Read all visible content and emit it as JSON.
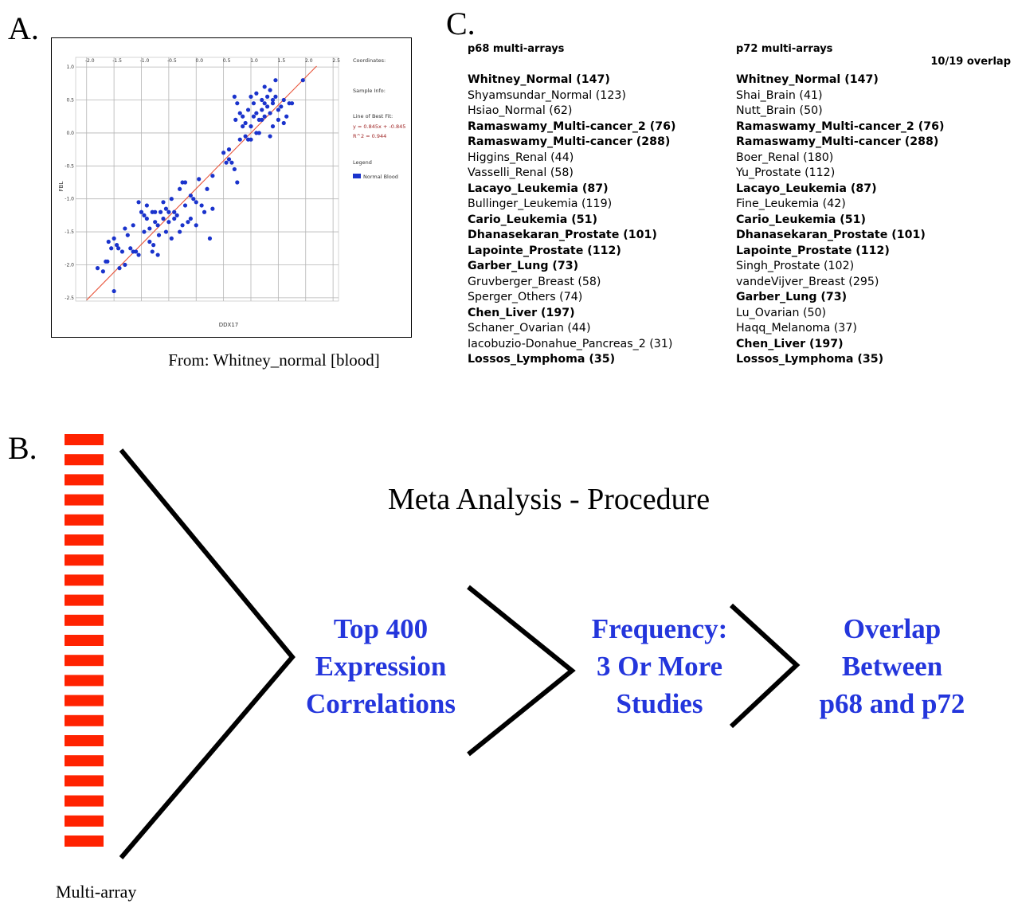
{
  "panel_letters": {
    "a": "A.",
    "b": "B.",
    "c": "C."
  },
  "panel_a": {
    "caption": "From: Whitney_normal [blood]",
    "side_panel": {
      "coordinates_label": "Coordinates:",
      "sample_info_label": "Sample Info:",
      "best_fit_label": "Line of Best Fit:",
      "equation": "y = 0.845x + -0.845",
      "r_squared": "R^2 = 0.944",
      "legend_label": "Legend",
      "legend_entry": "Normal Blood"
    },
    "colors": {
      "points": "#1a33cc",
      "fit_line": "#e8543a",
      "legend_swatch": "#1a33cc"
    },
    "chart_data": {
      "type": "scatter",
      "xlabel": "DDX17",
      "ylabel": "FBL",
      "xlim": [
        -2.2,
        2.6
      ],
      "ylim": [
        -2.55,
        1.05
      ],
      "x_ticks": [
        "-2.0",
        "-1.5",
        "-1.0",
        "-0.5",
        "0.0",
        "0.5",
        "1.0",
        "1.5",
        "2.0",
        "2.5"
      ],
      "y_ticks": [
        "1.0",
        "0.5",
        "0.0",
        "-0.5",
        "-1.0",
        "-1.5",
        "-2.0",
        "-2.5"
      ],
      "grid": true,
      "fit_line": {
        "slope": 0.845,
        "intercept": -0.845
      },
      "series": [
        {
          "name": "Normal Blood",
          "points": [
            [
              -1.8,
              -2.05
            ],
            [
              -1.7,
              -2.1
            ],
            [
              -1.65,
              -1.95
            ],
            [
              -1.62,
              -1.95
            ],
            [
              -1.6,
              -1.65
            ],
            [
              -1.55,
              -1.75
            ],
            [
              -1.5,
              -2.4
            ],
            [
              -1.5,
              -1.6
            ],
            [
              -1.45,
              -1.7
            ],
            [
              -1.42,
              -1.75
            ],
            [
              -1.4,
              -2.05
            ],
            [
              -1.35,
              -1.8
            ],
            [
              -1.3,
              -1.45
            ],
            [
              -1.3,
              -2.0
            ],
            [
              -1.25,
              -1.55
            ],
            [
              -1.2,
              -1.75
            ],
            [
              -1.15,
              -1.8
            ],
            [
              -1.15,
              -1.4
            ],
            [
              -1.1,
              -1.8
            ],
            [
              -1.05,
              -1.85
            ],
            [
              -1.05,
              -1.05
            ],
            [
              -1.0,
              -1.2
            ],
            [
              -0.95,
              -1.25
            ],
            [
              -0.95,
              -1.5
            ],
            [
              -0.9,
              -1.1
            ],
            [
              -0.9,
              -1.3
            ],
            [
              -0.85,
              -1.45
            ],
            [
              -0.85,
              -1.65
            ],
            [
              -0.8,
              -1.2
            ],
            [
              -0.8,
              -1.8
            ],
            [
              -0.78,
              -1.7
            ],
            [
              -0.75,
              -1.2
            ],
            [
              -0.75,
              -1.35
            ],
            [
              -0.7,
              -1.4
            ],
            [
              -0.7,
              -1.85
            ],
            [
              -0.68,
              -1.55
            ],
            [
              -0.65,
              -1.2
            ],
            [
              -0.6,
              -1.3
            ],
            [
              -0.6,
              -1.05
            ],
            [
              -0.55,
              -1.15
            ],
            [
              -0.55,
              -1.5
            ],
            [
              -0.5,
              -1.2
            ],
            [
              -0.5,
              -1.35
            ],
            [
              -0.45,
              -1.6
            ],
            [
              -0.45,
              -1.0
            ],
            [
              -0.4,
              -1.2
            ],
            [
              -0.4,
              -1.3
            ],
            [
              -0.35,
              -1.25
            ],
            [
              -0.3,
              -0.85
            ],
            [
              -0.3,
              -1.5
            ],
            [
              -0.25,
              -0.75
            ],
            [
              -0.25,
              -1.4
            ],
            [
              -0.2,
              -0.75
            ],
            [
              -0.2,
              -1.1
            ],
            [
              -0.15,
              -1.35
            ],
            [
              -0.1,
              -0.95
            ],
            [
              -0.05,
              -1.0
            ],
            [
              0.0,
              -1.05
            ],
            [
              0.0,
              -1.4
            ],
            [
              -0.1,
              -1.3
            ],
            [
              0.05,
              -0.7
            ],
            [
              0.1,
              -1.1
            ],
            [
              0.15,
              -1.2
            ],
            [
              0.2,
              -0.85
            ],
            [
              0.25,
              -1.6
            ],
            [
              0.3,
              -1.15
            ],
            [
              0.3,
              -0.65
            ],
            [
              0.5,
              -0.3
            ],
            [
              0.6,
              -0.4
            ],
            [
              0.65,
              -0.45
            ],
            [
              0.7,
              -0.55
            ],
            [
              0.75,
              -0.75
            ],
            [
              0.7,
              0.55
            ],
            [
              0.75,
              0.45
            ],
            [
              0.72,
              0.2
            ],
            [
              0.8,
              0.3
            ],
            [
              0.85,
              0.1
            ],
            [
              0.9,
              0.15
            ],
            [
              0.9,
              -0.05
            ],
            [
              0.95,
              0.35
            ],
            [
              1.0,
              0.55
            ],
            [
              1.0,
              0.1
            ],
            [
              1.0,
              -0.1
            ],
            [
              1.05,
              0.25
            ],
            [
              1.05,
              0.45
            ],
            [
              1.1,
              0.3
            ],
            [
              1.1,
              0.6
            ],
            [
              1.15,
              0.2
            ],
            [
              1.15,
              0.0
            ],
            [
              1.2,
              0.35
            ],
            [
              1.2,
              0.5
            ],
            [
              1.25,
              0.25
            ],
            [
              1.25,
              0.7
            ],
            [
              1.3,
              0.55
            ],
            [
              1.3,
              0.4
            ],
            [
              1.35,
              0.3
            ],
            [
              1.35,
              -0.05
            ],
            [
              1.4,
              0.45
            ],
            [
              1.4,
              0.1
            ],
            [
              1.45,
              0.55
            ],
            [
              1.5,
              0.35
            ],
            [
              1.5,
              0.2
            ],
            [
              1.55,
              0.4
            ],
            [
              1.6,
              0.15
            ],
            [
              1.6,
              0.5
            ],
            [
              1.65,
              0.25
            ],
            [
              1.7,
              0.45
            ],
            [
              1.75,
              0.45
            ],
            [
              1.95,
              0.8
            ],
            [
              1.45,
              0.8
            ],
            [
              1.35,
              0.65
            ],
            [
              1.2,
              0.2
            ],
            [
              1.1,
              0.0
            ],
            [
              0.95,
              -0.1
            ],
            [
              0.8,
              -0.1
            ],
            [
              0.85,
              0.25
            ],
            [
              0.6,
              -0.25
            ],
            [
              0.55,
              -0.45
            ],
            [
              1.4,
              0.5
            ],
            [
              1.25,
              0.45
            ]
          ]
        }
      ]
    }
  },
  "panel_b": {
    "title": "Meta Analysis - Procedure",
    "steps": [
      {
        "lines": [
          "Top 400",
          "Expression",
          "Correlations"
        ]
      },
      {
        "lines": [
          "Frequency:",
          "3 Or More",
          "Studies"
        ]
      },
      {
        "lines": [
          "Overlap",
          "Between",
          "p68 and p72"
        ]
      }
    ],
    "multiarray_label": "Multi-array",
    "multiarray_bar_count": 21,
    "colors": {
      "bars": "#ff2200",
      "text": "#2436dc",
      "lines": "#000000"
    }
  },
  "panel_c": {
    "overlap_note": "10/19 overlap",
    "p68": {
      "header": "p68 multi-arrays",
      "items": [
        {
          "text": "Whitney_Normal (147)",
          "bold": true
        },
        {
          "text": "Shyamsundar_Normal (123)",
          "bold": false
        },
        {
          "text": "Hsiao_Normal (62)",
          "bold": false
        },
        {
          "text": "Ramaswamy_Multi-cancer_2 (76)",
          "bold": true
        },
        {
          "text": "Ramaswamy_Multi-cancer (288)",
          "bold": true
        },
        {
          "text": "Higgins_Renal (44)",
          "bold": false
        },
        {
          "text": "Vasselli_Renal (58)",
          "bold": false
        },
        {
          "text": "Lacayo_Leukemia (87)",
          "bold": true
        },
        {
          "text": "Bullinger_Leukemia (119)",
          "bold": false
        },
        {
          "text": "Cario_Leukemia (51)",
          "bold": true
        },
        {
          "text": "Dhanasekaran_Prostate (101)",
          "bold": true
        },
        {
          "text": "Lapointe_Prostate (112)",
          "bold": true
        },
        {
          "text": "Garber_Lung (73)",
          "bold": true
        },
        {
          "text": "Gruvberger_Breast (58)",
          "bold": false
        },
        {
          "text": "Sperger_Others (74)",
          "bold": false
        },
        {
          "text": "Chen_Liver (197)",
          "bold": true
        },
        {
          "text": "Schaner_Ovarian (44)",
          "bold": false
        },
        {
          "text": "Iacobuzio-Donahue_Pancreas_2 (31)",
          "bold": false
        },
        {
          "text": "Lossos_Lymphoma (35)",
          "bold": true
        }
      ]
    },
    "p72": {
      "header": "p72 multi-arrays",
      "items": [
        {
          "text": "Whitney_Normal (147)",
          "bold": true
        },
        {
          "text": "Shai_Brain (41)",
          "bold": false
        },
        {
          "text": "Nutt_Brain (50)",
          "bold": false
        },
        {
          "text": "Ramaswamy_Multi-cancer_2 (76)",
          "bold": true
        },
        {
          "text": "Ramaswamy_Multi-cancer (288)",
          "bold": true
        },
        {
          "text": "Boer_Renal (180)",
          "bold": false
        },
        {
          "text": "Yu_Prostate (112)",
          "bold": false
        },
        {
          "text": "Lacayo_Leukemia (87)",
          "bold": true
        },
        {
          "text": "Fine_Leukemia (42)",
          "bold": false
        },
        {
          "text": "Cario_Leukemia (51)",
          "bold": true
        },
        {
          "text": "Dhanasekaran_Prostate (101)",
          "bold": true
        },
        {
          "text": "Lapointe_Prostate (112)",
          "bold": true
        },
        {
          "text": "Singh_Prostate (102)",
          "bold": false
        },
        {
          "text": "vandeVijver_Breast (295)",
          "bold": false
        },
        {
          "text": "Garber_Lung (73)",
          "bold": true
        },
        {
          "text": "Lu_Ovarian (50)",
          "bold": false
        },
        {
          "text": "Haqq_Melanoma (37)",
          "bold": false
        },
        {
          "text": "Chen_Liver (197)",
          "bold": true
        },
        {
          "text": "Lossos_Lymphoma (35)",
          "bold": true
        }
      ]
    }
  }
}
